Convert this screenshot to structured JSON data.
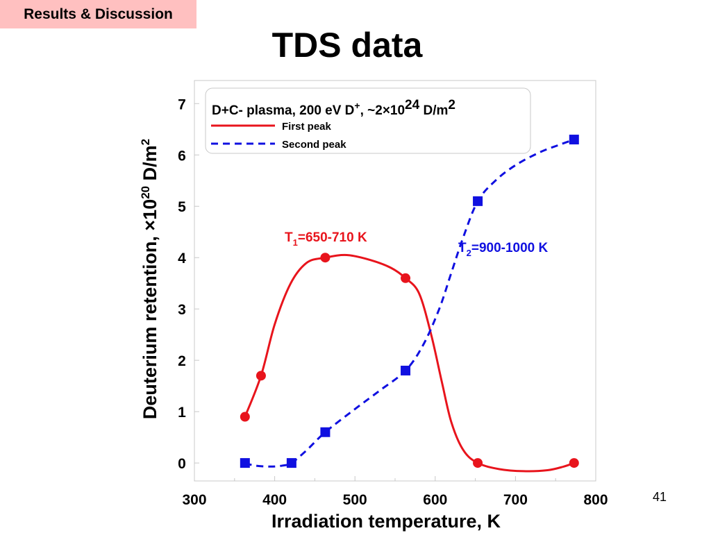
{
  "slide": {
    "section_tag": "Results & Discussion",
    "title": "TDS data",
    "page_number": "41"
  },
  "colors": {
    "first_peak": "#e8141c",
    "second_peak": "#1010e0",
    "section_tag_bg": "#ffc0c0"
  },
  "chart_data": {
    "type": "line",
    "xlabel": "Irradiation temperature, K",
    "ylabel": "Deuterium retention, ×10",
    "ylabel_exponent": "20",
    "ylabel_unit": " D/m",
    "ylabel_unit_exponent": "2",
    "xlim": [
      300,
      800
    ],
    "ylim": [
      -0.35,
      7.45
    ],
    "xticks": [
      300,
      400,
      500,
      600,
      700,
      800
    ],
    "yticks": [
      0,
      1,
      2,
      3,
      4,
      5,
      6,
      7
    ],
    "grid": false,
    "legend": {
      "placement": "top-left",
      "title": "D+C- plasma, 200 eV D",
      "title_sup": "+",
      "title_mid": ", ~2×10",
      "title_exp": "24",
      "title_unit": " D/m",
      "title_unit_exp": "2"
    },
    "series": [
      {
        "name": "First peak",
        "style": "solid",
        "marker": "circle",
        "color": "#e8141c",
        "points": [
          [
            363,
            0.9
          ],
          [
            383,
            1.7
          ],
          [
            463,
            4.0
          ],
          [
            563,
            3.6
          ],
          [
            653,
            0.0
          ],
          [
            773,
            0.0
          ]
        ],
        "curve": [
          [
            363,
            0.9
          ],
          [
            383,
            1.7
          ],
          [
            400,
            2.7
          ],
          [
            420,
            3.5
          ],
          [
            440,
            3.9
          ],
          [
            463,
            4.0
          ],
          [
            490,
            4.05
          ],
          [
            520,
            3.95
          ],
          [
            545,
            3.8
          ],
          [
            563,
            3.6
          ],
          [
            580,
            3.3
          ],
          [
            595,
            2.5
          ],
          [
            608,
            1.6
          ],
          [
            620,
            0.8
          ],
          [
            635,
            0.25
          ],
          [
            653,
            0.0
          ],
          [
            680,
            -0.12
          ],
          [
            710,
            -0.16
          ],
          [
            740,
            -0.14
          ],
          [
            760,
            -0.07
          ],
          [
            773,
            0.0
          ]
        ],
        "annotation": {
          "text": "T",
          "sub": "1",
          "rest": "=650-710 K"
        }
      },
      {
        "name": "Second peak",
        "style": "dashed",
        "marker": "square",
        "color": "#1010e0",
        "points": [
          [
            363,
            0.0
          ],
          [
            421,
            0.0
          ],
          [
            463,
            0.6
          ],
          [
            563,
            1.8
          ],
          [
            653,
            5.1
          ],
          [
            773,
            6.3
          ]
        ],
        "curve": [
          [
            363,
            0.0
          ],
          [
            375,
            -0.05
          ],
          [
            395,
            -0.07
          ],
          [
            410,
            -0.05
          ],
          [
            421,
            0.0
          ],
          [
            440,
            0.25
          ],
          [
            463,
            0.6
          ],
          [
            500,
            1.05
          ],
          [
            530,
            1.4
          ],
          [
            563,
            1.8
          ],
          [
            585,
            2.3
          ],
          [
            605,
            3.0
          ],
          [
            620,
            3.7
          ],
          [
            635,
            4.4
          ],
          [
            653,
            5.1
          ],
          [
            675,
            5.5
          ],
          [
            700,
            5.8
          ],
          [
            730,
            6.05
          ],
          [
            755,
            6.2
          ],
          [
            773,
            6.3
          ]
        ],
        "annotation": {
          "text": "T",
          "sub": "2",
          "rest": "=900-1000 K"
        }
      }
    ]
  }
}
